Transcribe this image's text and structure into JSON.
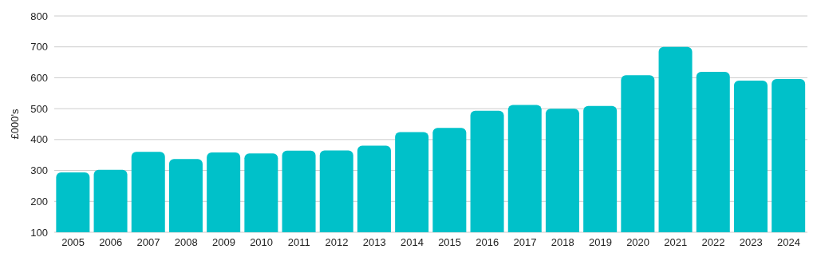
{
  "chart_data": {
    "type": "bar",
    "ylabel": "£000's",
    "categories": [
      "2005",
      "2006",
      "2007",
      "2008",
      "2009",
      "2010",
      "2011",
      "2012",
      "2013",
      "2014",
      "2015",
      "2016",
      "2017",
      "2018",
      "2019",
      "2020",
      "2021",
      "2022",
      "2023",
      "2024"
    ],
    "values": [
      294,
      302,
      360,
      337,
      358,
      355,
      364,
      365,
      380,
      424,
      438,
      493,
      512,
      500,
      509,
      608,
      700,
      619,
      591,
      596
    ],
    "color": "#00c1c9",
    "ylim": [
      100,
      800
    ],
    "yticks": [
      100,
      200,
      300,
      400,
      500,
      600,
      700,
      800
    ],
    "grid": "y"
  }
}
